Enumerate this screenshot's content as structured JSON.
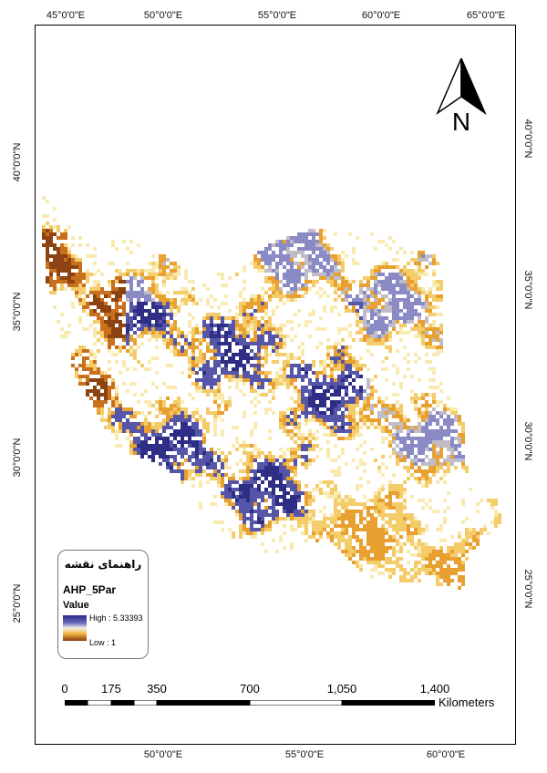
{
  "map": {
    "frame_ticks": {
      "top": [
        "45°0'0\"E",
        "50°0'0\"E",
        "55°0'0\"E",
        "60°0'0\"E",
        "65°0'0\"E"
      ],
      "bottom": [
        "50°0'0\"E",
        "55°0'0\"E",
        "60°0'0\"E"
      ],
      "left": [
        "40°0'0\"N",
        "35°0'0\"N",
        "30°0'0\"N",
        "25°0'0\"N"
      ],
      "right": [
        "40°0'0\"N",
        "35°0'0\"N",
        "30°0'0\"N",
        "25°0'0\"N"
      ]
    },
    "north_arrow": {
      "label": "N",
      "icon": "north-arrow-icon"
    },
    "legend": {
      "title": "راهنمای نقشه",
      "layer": "AHP_5Par",
      "field": "Value",
      "high": "High : 5.33393",
      "low": "Low : 1",
      "colors": {
        "high": "#2a2a8a",
        "mid": "#f5f0e6",
        "low": "#8a3a10"
      }
    },
    "scale_bar": {
      "labels": [
        "0",
        "175",
        "350",
        "700",
        "1,050",
        "1,400"
      ],
      "unit": "Kilometers"
    },
    "class_colors": [
      "#2e2e86",
      "#5656a8",
      "#8a8ac4",
      "#c0bcc8",
      "#f8eab0",
      "#f4cc6a",
      "#e8a030",
      "#c8701c",
      "#8e4412"
    ]
  }
}
